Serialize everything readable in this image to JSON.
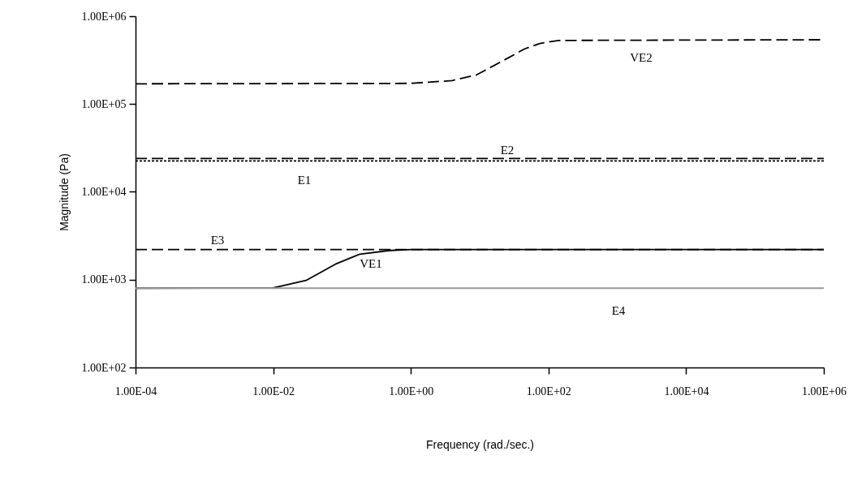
{
  "chart_data": {
    "type": "line",
    "xlabel": "Frequency (rad./sec.)",
    "ylabel": "Magnitude (Pa)",
    "log": "xy",
    "grid": false,
    "marker": "none",
    "xlim": [
      0.0001,
      1000000
    ],
    "ylim": [
      100,
      1000000
    ],
    "xticks": [
      {
        "value": 0.0001,
        "label": "1.00E-04"
      },
      {
        "value": 0.01,
        "label": "1.00E-02"
      },
      {
        "value": 1,
        "label": "1.00E+00"
      },
      {
        "value": 100,
        "label": "1.00E+02"
      },
      {
        "value": 10000,
        "label": "1.00E+04"
      },
      {
        "value": 1000000,
        "label": "1.00E+06"
      }
    ],
    "yticks": [
      {
        "value": 100,
        "label": "1.00E+02"
      },
      {
        "value": 1000,
        "label": "1.00E+03"
      },
      {
        "value": 10000,
        "label": "1.00E+04"
      },
      {
        "value": 100000,
        "label": "1.00E+05"
      },
      {
        "value": 1000000,
        "label": "1.00E+06"
      }
    ],
    "series": [
      {
        "name": "VE2",
        "color": "#000000",
        "line_style": "dashed",
        "x": [
          0.0001,
          1,
          4,
          9,
          20,
          45,
          75,
          140,
          1000000
        ],
        "values": [
          170000,
          172000,
          185000,
          215000,
          300000,
          425000,
          490000,
          530000,
          540000
        ]
      },
      {
        "name": "E2",
        "color": "#000000",
        "line_style": "dashed",
        "x": [
          0.0001,
          1000000
        ],
        "values": [
          24000,
          24000
        ]
      },
      {
        "name": "E1",
        "color": "#000000",
        "line_style": "dotted",
        "x": [
          0.0001,
          1000000
        ],
        "values": [
          22500,
          22500
        ]
      },
      {
        "name": "E3",
        "color": "#000000",
        "line_style": "dashed",
        "x": [
          0.0001,
          1000000
        ],
        "values": [
          2200,
          2200
        ]
      },
      {
        "name": "VE1",
        "color": "#000000",
        "line_style": "solid",
        "x": [
          0.0001,
          0.01,
          0.03,
          0.08,
          0.18,
          0.5,
          1,
          1000000
        ],
        "values": [
          800,
          805,
          980,
          1500,
          1950,
          2150,
          2200,
          2200
        ]
      },
      {
        "name": "E4",
        "color": "#999999",
        "line_style": "solid",
        "x": [
          0.0001,
          1000000
        ],
        "values": [
          800,
          800
        ]
      }
    ]
  }
}
